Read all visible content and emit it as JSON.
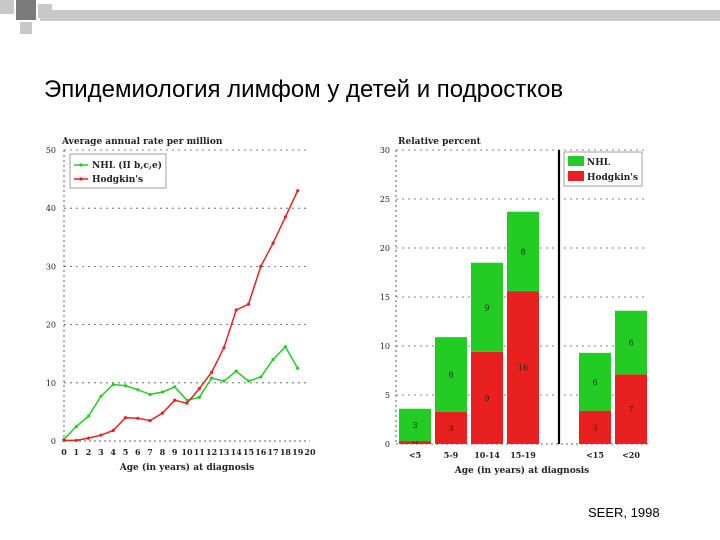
{
  "slide": {
    "title": "Эпидемиология лимфом у детей и подростков",
    "source": "SEER, 1998"
  },
  "colors": {
    "nhl": "#22cc22",
    "hodgkin": "#e82020",
    "corner_dark": "#7a7a7a",
    "corner_light": "#c8c8c8"
  },
  "chart_data": [
    {
      "type": "line",
      "title": "Average annual rate per million",
      "xlabel": "Age (in years) at diagnosis",
      "ylabel": "",
      "x": [
        0,
        1,
        2,
        3,
        4,
        5,
        6,
        7,
        8,
        9,
        10,
        11,
        12,
        13,
        14,
        15,
        16,
        17,
        18,
        19,
        20
      ],
      "xlim": [
        0,
        20
      ],
      "ylim": [
        0,
        50
      ],
      "yticks": [
        0,
        10,
        20,
        30,
        40,
        50
      ],
      "grid": "horizontal-dotted",
      "legend": "top-left",
      "series": [
        {
          "name": "NHL (II b,c,e)",
          "color": "#22cc22",
          "x": [
            0,
            1,
            2,
            3,
            4,
            5,
            6,
            7,
            8,
            9,
            10,
            11,
            12,
            13,
            14,
            15,
            16,
            17,
            18,
            19
          ],
          "values": [
            0.3,
            2.5,
            4.3,
            7.7,
            9.7,
            9.5,
            8.8,
            8.0,
            8.4,
            9.3,
            7.0,
            7.5,
            10.8,
            10.3,
            12.0,
            10.3,
            11.0,
            14.0,
            16.2,
            12.5
          ]
        },
        {
          "name": "Hodgkin's",
          "color": "#e82020",
          "x": [
            0,
            1,
            2,
            3,
            4,
            5,
            6,
            7,
            8,
            9,
            10,
            11,
            12,
            13,
            14,
            15,
            16,
            17,
            18,
            19
          ],
          "values": [
            0.1,
            0.1,
            0.5,
            1.0,
            1.8,
            4.0,
            3.9,
            3.5,
            4.8,
            7.0,
            6.5,
            9.0,
            11.8,
            16.0,
            22.5,
            23.5,
            30.0,
            34.0,
            38.5,
            43.0
          ]
        }
      ]
    },
    {
      "type": "bar",
      "stacked": true,
      "title": "Relative percent",
      "xlabel": "Age (in years) at diagnosis",
      "ylabel": "",
      "ylim": [
        0,
        30
      ],
      "yticks": [
        0,
        5,
        10,
        15,
        20,
        25,
        30
      ],
      "grid": "horizontal-dotted",
      "legend": "top-right",
      "categories": [
        "<5",
        "5-9",
        "10-14",
        "15-19",
        "<15",
        "<20"
      ],
      "series": [
        {
          "name": "Hodgkin's",
          "color": "#e82020",
          "values": [
            0.3,
            3.3,
            9.4,
            15.6,
            3.4,
            7.1
          ],
          "labels": [
            "0",
            "3",
            "9",
            "16",
            "3",
            "7"
          ]
        },
        {
          "name": "NHL",
          "color": "#22cc22",
          "values": [
            3.3,
            7.6,
            9.1,
            8.1,
            5.9,
            6.5
          ],
          "labels": [
            "3",
            "8",
            "9",
            "8",
            "6",
            "6"
          ]
        }
      ]
    }
  ]
}
